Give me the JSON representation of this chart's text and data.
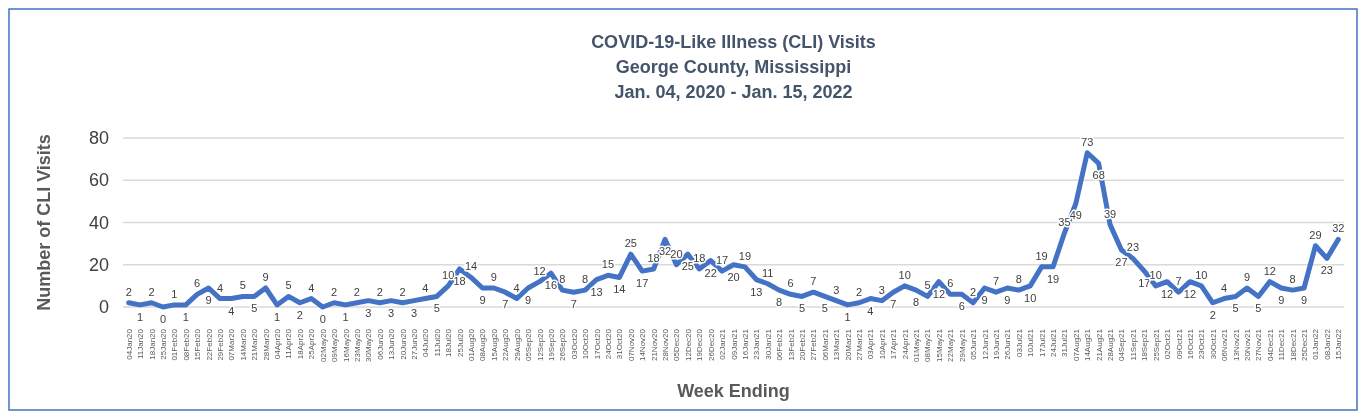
{
  "chart_data": {
    "type": "line",
    "title": "COVID-19-Like Illness (CLI) Visits",
    "subtitle": "George County, Mississippi\nJan. 04, 2020 - Jan. 15, 2022",
    "xlabel": "Week Ending",
    "ylabel": "Number of CLI Visits",
    "categories": [
      "04Jan20",
      "11Jan20",
      "18Jan20",
      "25Jan20",
      "01Feb20",
      "08Feb20",
      "15Feb20",
      "22Feb20",
      "29Feb20",
      "07Mar20",
      "14Mar20",
      "21Mar20",
      "28Mar20",
      "04Apr20",
      "11Apr20",
      "18Apr20",
      "25Apr20",
      "02May20",
      "09May20",
      "16May20",
      "23May20",
      "30May20",
      "06Jun20",
      "13Jun20",
      "20Jun20",
      "27Jun20",
      "04Jul20",
      "11Jul20",
      "18Jul20",
      "25Jul20",
      "01Aug20",
      "08Aug20",
      "15Aug20",
      "22Aug20",
      "29Aug20",
      "05Sep20",
      "12Sep20",
      "19Sep20",
      "26Sep20",
      "03Oct20",
      "10Oct20",
      "17Oct20",
      "24Oct20",
      "31Oct20",
      "07Nov20",
      "14Nov20",
      "21Nov20",
      "28Nov20",
      "05Dec20",
      "12Dec20",
      "19Dec20",
      "26Dec20",
      "02Jan21",
      "09Jan21",
      "16Jan21",
      "23Jan21",
      "30Jan21",
      "06Feb21",
      "13Feb21",
      "20Feb21",
      "27Feb21",
      "06Mar21",
      "13Mar21",
      "20Mar21",
      "27Mar21",
      "03Apr21",
      "10Apr21",
      "17Apr21",
      "24Apr21",
      "01May21",
      "08May21",
      "15May21",
      "22May21",
      "29May21",
      "05Jun21",
      "12Jun21",
      "19Jun21",
      "26Jun21",
      "03Jul21",
      "10Jul21",
      "17Jul21",
      "24Jul21",
      "31Jul21",
      "07Aug21",
      "14Aug21",
      "21Aug21",
      "28Aug21",
      "04Sep21",
      "11Sep21",
      "18Sep21",
      "25Sep21",
      "02Oct21",
      "09Oct21",
      "16Oct21",
      "23Oct21",
      "30Oct21",
      "06Nov21",
      "13Nov21",
      "20Nov21",
      "27Nov21",
      "04Dec21",
      "11Dec21",
      "18Dec21",
      "25Dec21",
      "01Jan22",
      "08Jan22",
      "15Jan22"
    ],
    "series": [
      {
        "color": "#4472c4",
        "values": [
          2,
          1,
          2,
          0,
          1,
          1,
          6,
          9,
          4,
          4,
          5,
          5,
          9,
          1,
          5,
          2,
          4,
          0,
          2,
          1,
          2,
          3,
          2,
          3,
          2,
          3,
          4,
          5,
          10,
          18,
          14,
          9,
          9,
          7,
          4,
          9,
          12,
          16,
          8,
          7,
          8,
          13,
          15,
          14,
          25,
          17,
          18,
          32,
          20,
          25,
          18,
          22,
          17,
          20,
          19,
          13,
          11,
          8,
          6,
          5,
          7,
          5,
          3,
          1,
          2,
          4,
          3,
          7,
          10,
          8,
          5,
          12,
          6,
          6,
          2,
          9,
          7,
          9,
          8,
          10,
          19,
          19,
          35,
          49,
          73,
          68,
          39,
          27,
          23,
          17,
          10,
          12,
          7,
          12,
          10,
          2,
          4,
          5,
          9,
          5,
          12,
          9,
          8,
          9,
          29,
          23,
          32
        ]
      }
    ],
    "ylim": [
      0,
      80
    ],
    "yticks": [
      0,
      20,
      40,
      60,
      80
    ],
    "grid": "y",
    "data_labels": true
  }
}
